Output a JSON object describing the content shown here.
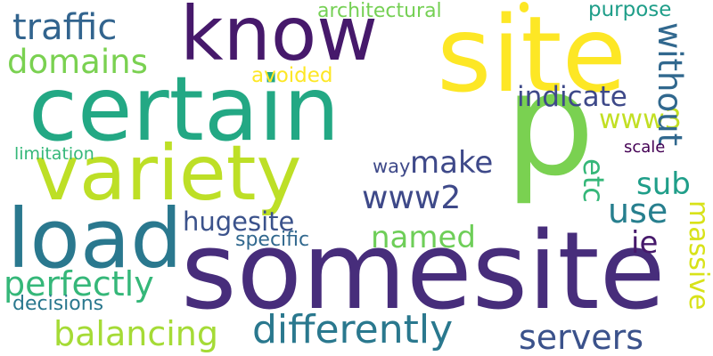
{
  "words": {
    "p": "p",
    "somesite": "somesite",
    "certain": "certain",
    "site": "site",
    "know": "know",
    "variety": "variety",
    "load": "load",
    "balancing": "balancing",
    "differently": "differently",
    "servers": "servers",
    "perfectly": "perfectly",
    "domains": "domains",
    "traffic": "traffic",
    "named": "named",
    "make": "make",
    "use": "use",
    "sub": "sub",
    "www2": "www2",
    "www3": "www3",
    "indicate": "indicate",
    "hugesite": "hugesite",
    "without": "without",
    "massive": "massive",
    "etc": "etc",
    "ie": "ie",
    "specific": "specific",
    "architectural": "architectural",
    "purpose": "purpose",
    "avoided": "avoided",
    "limitation": "limitation",
    "decisions": "decisions",
    "way": "way",
    "scale": "scale"
  },
  "colors": {
    "dark_purple": "#46196b",
    "purple": "#472d7b",
    "indigo": "#3e4989",
    "blue": "#32648e",
    "teal": "#26828e",
    "green_teal": "#1f9e89",
    "green": "#35b779",
    "light_green": "#6ece58",
    "yellow_green": "#b5de2b",
    "yellow": "#fde725",
    "bright_green": "#7ad151"
  }
}
